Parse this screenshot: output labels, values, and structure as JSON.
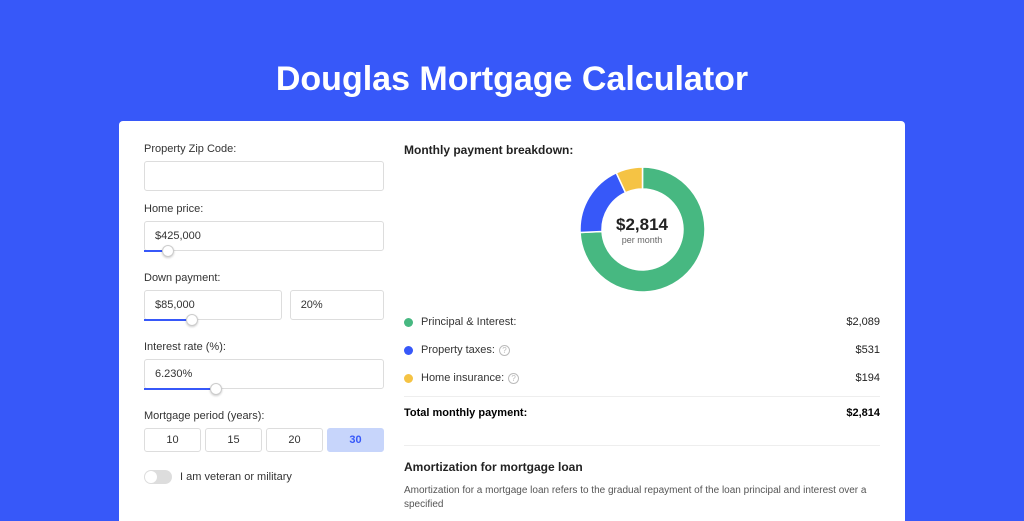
{
  "title": "Douglas Mortgage Calculator",
  "colors": {
    "bg": "#3758f9",
    "card": "#ffffff",
    "green": "#47b881",
    "blue": "#3758f9",
    "yellow": "#f5c344",
    "border": "#dddddd"
  },
  "form": {
    "zip": {
      "label": "Property Zip Code:",
      "value": ""
    },
    "home_price": {
      "label": "Home price:",
      "value": "$425,000",
      "slider_pct": 10
    },
    "down_payment": {
      "label": "Down payment:",
      "amount": "$85,000",
      "percent": "20%",
      "slider_pct": 20
    },
    "interest": {
      "label": "Interest rate (%):",
      "value": "6.230%",
      "slider_pct": 30
    },
    "period": {
      "label": "Mortgage period (years):",
      "options": [
        "10",
        "15",
        "20",
        "30"
      ],
      "active_index": 3
    },
    "veteran": {
      "label": "I am veteran or military"
    }
  },
  "breakdown": {
    "heading": "Monthly payment breakdown:",
    "donut": {
      "amount": "$2,814",
      "per": "per month",
      "slices": [
        {
          "color": "#47b881",
          "value": 2089
        },
        {
          "color": "#3758f9",
          "value": 531
        },
        {
          "color": "#f5c344",
          "value": 194
        }
      ],
      "size": 125,
      "thickness": 22
    },
    "items": [
      {
        "label": "Principal & Interest:",
        "value": "$2,089",
        "color": "#47b881",
        "help": false
      },
      {
        "label": "Property taxes:",
        "value": "$531",
        "color": "#3758f9",
        "help": true
      },
      {
        "label": "Home insurance:",
        "value": "$194",
        "color": "#f5c344",
        "help": true
      }
    ],
    "total": {
      "label": "Total monthly payment:",
      "value": "$2,814"
    }
  },
  "amortization": {
    "heading": "Amortization for mortgage loan",
    "text": "Amortization for a mortgage loan refers to the gradual repayment of the loan principal and interest over a specified"
  }
}
